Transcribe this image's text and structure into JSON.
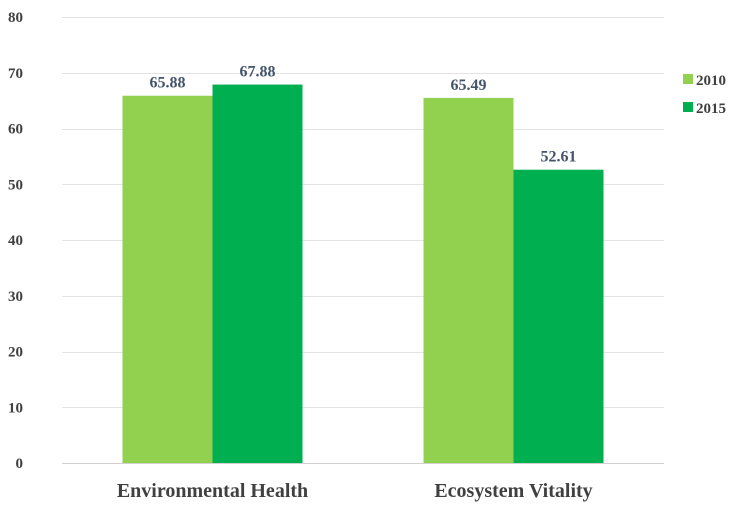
{
  "chart_data": {
    "type": "bar",
    "categories": [
      "Environmental Health",
      "Ecosystem Vitality"
    ],
    "series": [
      {
        "name": "2010",
        "values": [
          65.88,
          65.49
        ],
        "color": "#92d050"
      },
      {
        "name": "2015",
        "values": [
          67.88,
          52.61
        ],
        "color": "#00b050"
      }
    ],
    "ylim": [
      0,
      80
    ],
    "yticks": [
      0,
      10,
      20,
      30,
      40,
      50,
      60,
      70,
      80
    ],
    "grid": true,
    "legend": "right",
    "data_label_color": "#44546a"
  }
}
